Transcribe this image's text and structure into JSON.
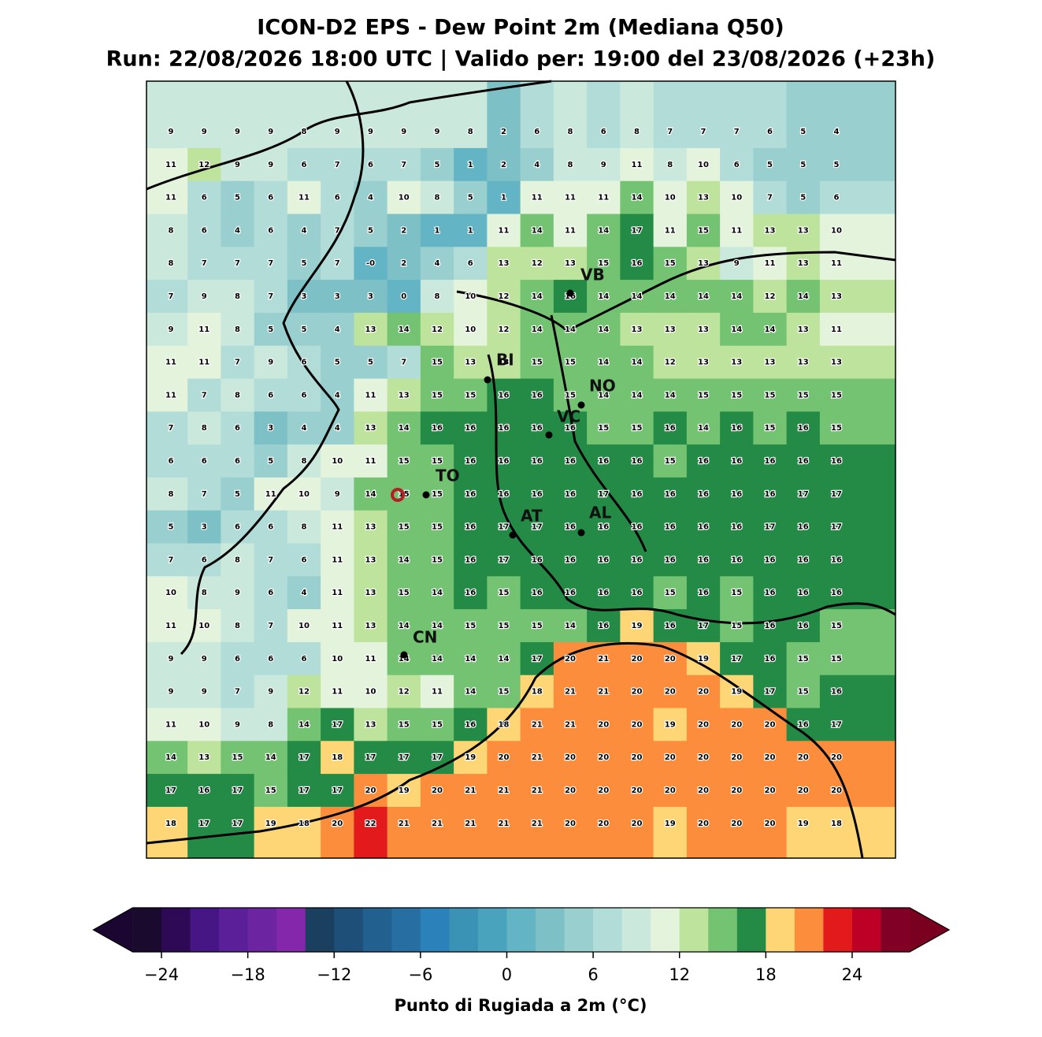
{
  "title": "ICON-D2 EPS - Dew Point 2m (Mediana Q50)",
  "subtitle": "Run: 22/08/2026 18:00 UTC | Valido per: 19:00 del 23/08/2026 (+23h)",
  "grid": {
    "rows": [
      [
        9,
        9,
        9,
        9,
        8,
        9,
        9,
        9,
        9,
        8,
        2,
        6,
        8,
        6,
        8,
        7,
        7,
        7,
        6,
        5,
        4
      ],
      [
        11,
        12,
        9,
        9,
        6,
        7,
        6,
        7,
        5,
        1,
        2,
        4,
        8,
        9,
        11,
        8,
        10,
        6,
        5,
        5,
        5
      ],
      [
        11,
        6,
        5,
        6,
        11,
        6,
        4,
        10,
        8,
        5,
        1,
        11,
        11,
        11,
        14,
        10,
        13,
        10,
        7,
        5,
        6
      ],
      [
        8,
        6,
        4,
        6,
        4,
        7,
        5,
        2,
        1,
        1,
        11,
        14,
        11,
        14,
        17,
        11,
        15,
        11,
        13,
        13,
        10
      ],
      [
        8,
        7,
        7,
        7,
        5,
        7,
        {
          "value": 0,
          "label": "-0"
        },
        2,
        4,
        6,
        13,
        12,
        13,
        15,
        16,
        15,
        13,
        9,
        11,
        13,
        11
      ],
      [
        7,
        9,
        8,
        7,
        3,
        3,
        3,
        0,
        8,
        10,
        12,
        14,
        16,
        14,
        14,
        14,
        14,
        14,
        12,
        14,
        13
      ],
      [
        9,
        11,
        8,
        5,
        5,
        4,
        13,
        14,
        12,
        10,
        12,
        14,
        14,
        14,
        13,
        13,
        13,
        14,
        14,
        13,
        11
      ],
      [
        11,
        11,
        7,
        9,
        6,
        5,
        5,
        7,
        15,
        13,
        13,
        15,
        15,
        14,
        14,
        12,
        13,
        13,
        13,
        13,
        13
      ],
      [
        11,
        7,
        8,
        6,
        6,
        4,
        11,
        13,
        15,
        15,
        16,
        16,
        15,
        14,
        14,
        14,
        15,
        15,
        15,
        15,
        15
      ],
      [
        7,
        8,
        6,
        3,
        4,
        4,
        13,
        14,
        16,
        16,
        16,
        16,
        16,
        15,
        15,
        16,
        14,
        16,
        15,
        16,
        15
      ],
      [
        6,
        6,
        6,
        5,
        8,
        10,
        11,
        15,
        15,
        16,
        16,
        16,
        16,
        16,
        16,
        15,
        16,
        16,
        16,
        16,
        16
      ],
      [
        8,
        7,
        5,
        11,
        10,
        9,
        14,
        15,
        15,
        16,
        16,
        16,
        16,
        17,
        16,
        16,
        16,
        16,
        16,
        17,
        17
      ],
      [
        5,
        3,
        6,
        6,
        8,
        11,
        13,
        15,
        15,
        16,
        17,
        17,
        16,
        16,
        16,
        16,
        16,
        16,
        17,
        16,
        17
      ],
      [
        7,
        6,
        8,
        7,
        6,
        11,
        13,
        14,
        15,
        16,
        17,
        16,
        16,
        16,
        16,
        16,
        16,
        16,
        16,
        16,
        16
      ],
      [
        10,
        8,
        9,
        6,
        4,
        11,
        13,
        15,
        14,
        16,
        15,
        16,
        16,
        16,
        16,
        15,
        16,
        15,
        16,
        16,
        16
      ],
      [
        11,
        10,
        8,
        7,
        10,
        11,
        13,
        14,
        14,
        15,
        15,
        15,
        14,
        16,
        19,
        16,
        17,
        15,
        16,
        16,
        15
      ],
      [
        9,
        9,
        6,
        6,
        6,
        10,
        11,
        14,
        14,
        14,
        14,
        17,
        20,
        21,
        20,
        20,
        19,
        17,
        16,
        15,
        15
      ],
      [
        9,
        9,
        7,
        9,
        12,
        11,
        10,
        12,
        11,
        14,
        15,
        18,
        21,
        21,
        20,
        20,
        20,
        19,
        17,
        15,
        16
      ],
      [
        11,
        10,
        9,
        8,
        14,
        17,
        13,
        15,
        15,
        16,
        18,
        21,
        21,
        20,
        20,
        19,
        20,
        20,
        20,
        16,
        17
      ],
      [
        14,
        13,
        15,
        14,
        17,
        18,
        17,
        17,
        17,
        19,
        20,
        21,
        20,
        20,
        20,
        20,
        20,
        20,
        20,
        20,
        20
      ],
      [
        17,
        16,
        17,
        15,
        17,
        17,
        20,
        19,
        20,
        21,
        21,
        21,
        20,
        20,
        20,
        20,
        20,
        20,
        20,
        20,
        20
      ],
      [
        18,
        17,
        17,
        19,
        18,
        20,
        22,
        21,
        21,
        21,
        21,
        21,
        20,
        20,
        20,
        19,
        20,
        20,
        20,
        19,
        18
      ]
    ]
  },
  "cities": [
    {
      "label": "VB"
    },
    {
      "label": "BI"
    },
    {
      "label": "NO"
    },
    {
      "label": "VC"
    },
    {
      "label": "TO"
    },
    {
      "label": "AT"
    },
    {
      "label": "AL"
    },
    {
      "label": "CN"
    }
  ],
  "colorbar": {
    "label": "Punto di Rugiada a 2m (°C)",
    "levels": [
      -26,
      -24,
      -22,
      -20,
      -18,
      -16,
      -14,
      -12,
      -10,
      -8,
      -6,
      -4,
      -2,
      0,
      2,
      4,
      6,
      8,
      10,
      12,
      14,
      16,
      18,
      20,
      22,
      24,
      26,
      28
    ],
    "colors": [
      "#1a0a2e",
      "#2e0a56",
      "#461685",
      "#5b1f99",
      "#6c24a0",
      "#8427ab",
      "#1b3f5e",
      "#1e4f78",
      "#22618f",
      "#276fa3",
      "#2b82bb",
      "#3a93b4",
      "#4aa3bd",
      "#63b4c4",
      "#7dc0c6",
      "#99cfce",
      "#b2dcd8",
      "#cbe8dd",
      "#e4f4dc",
      "#bde39c",
      "#73c373",
      "#238b45",
      "#fed676",
      "#fc8d3c",
      "#e31a1c",
      "#bd0026",
      "#800026"
    ],
    "under_color": "#1a0630",
    "over_color": "#7a0020",
    "ticks": [
      {
        "value": -24,
        "label": "−24"
      },
      {
        "value": -18,
        "label": "−18"
      },
      {
        "value": -12,
        "label": "−12"
      },
      {
        "value": -6,
        "label": "−6"
      },
      0,
      6,
      12,
      18,
      24
    ]
  }
}
